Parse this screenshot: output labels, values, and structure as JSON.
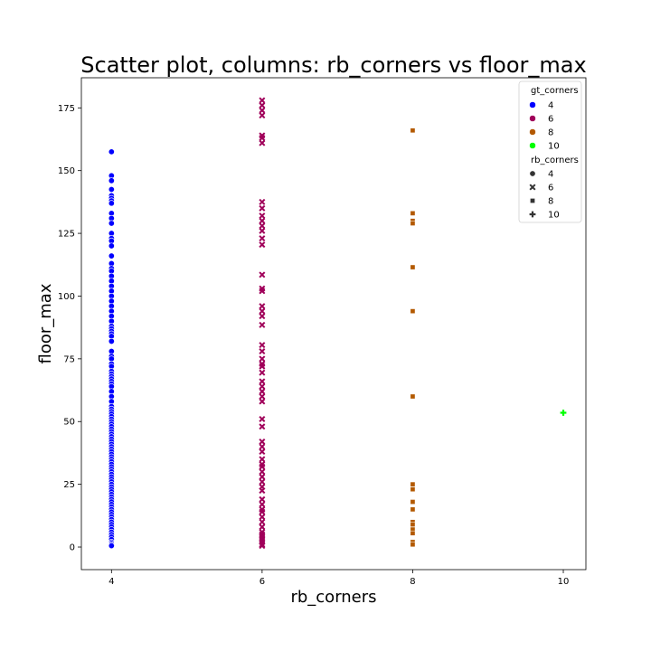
{
  "chart_data": {
    "type": "scatter",
    "title": "Scatter plot, columns: rb_corners vs floor_max",
    "xlabel": "rb_corners",
    "ylabel": "floor_max",
    "xlim": [
      3.6,
      10.3
    ],
    "ylim": [
      -9,
      187
    ],
    "xticks": [
      4,
      6,
      8,
      10
    ],
    "yticks": [
      0,
      25,
      50,
      75,
      100,
      125,
      150,
      175
    ],
    "grid": false,
    "legend": {
      "placement": "top-right",
      "hue_title": "gt_corners",
      "hue_entries": [
        {
          "label": "4",
          "color": "#0000ff"
        },
        {
          "label": "6",
          "color": "#a0005a"
        },
        {
          "label": "8",
          "color": "#b35900"
        },
        {
          "label": "10",
          "color": "#00ff00"
        }
      ],
      "style_title": "rb_corners",
      "style_entries": [
        {
          "label": "4",
          "marker": "circle"
        },
        {
          "label": "6",
          "marker": "x"
        },
        {
          "label": "8",
          "marker": "square"
        },
        {
          "label": "10",
          "marker": "plus"
        }
      ]
    },
    "series": [
      {
        "x": 4,
        "marker": "circle",
        "color": "#0000ff",
        "y": [
          157.5,
          148,
          146,
          142.5,
          140,
          139,
          138,
          137,
          133,
          131,
          129,
          125,
          123,
          122,
          120,
          116,
          113,
          111,
          110,
          108,
          106,
          104,
          102,
          100,
          98,
          96,
          94,
          92,
          90,
          88,
          87,
          86,
          85,
          84,
          82,
          78,
          76,
          75,
          73,
          72,
          70,
          69,
          68,
          67,
          66,
          65,
          64,
          62,
          60,
          58,
          56,
          55,
          54,
          53,
          52,
          51,
          50,
          49,
          48,
          47,
          46,
          45,
          44,
          43,
          42,
          41,
          40,
          39,
          38,
          37,
          36,
          35,
          34,
          33,
          32,
          31,
          30,
          29,
          28,
          27,
          26,
          25,
          24,
          23,
          22,
          21,
          20,
          19,
          18,
          17,
          16,
          15,
          14,
          13,
          12,
          11,
          10,
          9,
          8,
          7,
          6,
          5,
          4,
          3,
          2,
          1.5,
          1,
          0.5
        ]
      },
      {
        "x": 6,
        "marker": "x",
        "color": "#a0005a",
        "y": [
          178,
          176,
          174,
          172,
          164,
          163,
          161,
          137.5,
          135,
          132,
          130,
          128,
          126,
          123,
          120.5,
          108.5,
          103,
          102,
          96,
          94,
          92,
          88.5,
          80.5,
          78,
          75,
          73,
          72,
          69.5,
          66,
          64,
          62,
          60,
          58,
          51,
          48,
          42,
          40,
          38,
          35,
          33,
          32,
          30,
          28,
          26,
          24,
          22.5,
          19,
          17,
          15,
          14,
          12,
          10,
          8,
          6,
          5,
          4,
          3,
          2,
          1,
          0.5
        ]
      },
      {
        "x": 8,
        "marker": "square",
        "color": "#b35900",
        "y": [
          166,
          133,
          130,
          129,
          111.5,
          94,
          60,
          25,
          23,
          18,
          15,
          10,
          9,
          7,
          5.5,
          2,
          1
        ]
      },
      {
        "x": 10,
        "marker": "plus",
        "color": "#00ff00",
        "y": [
          53.5
        ]
      }
    ]
  }
}
